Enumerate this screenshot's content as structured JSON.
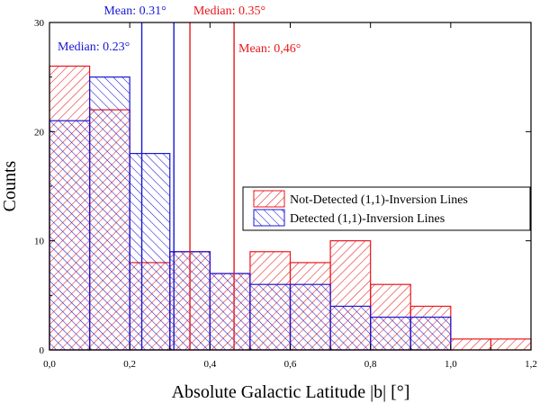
{
  "chart_data": {
    "type": "bar",
    "xlabel": "Absolute Galactic Latitude |b| [°]",
    "ylabel": "Counts",
    "xlim": [
      0.0,
      1.2
    ],
    "ylim": [
      0,
      30
    ],
    "bin_width": 0.1,
    "x_ticks": [
      "0,0",
      "0,2",
      "0,4",
      "0,6",
      "0,8",
      "1,0",
      "1,2"
    ],
    "x_tick_values": [
      0.0,
      0.2,
      0.4,
      0.6,
      0.8,
      1.0,
      1.2
    ],
    "y_ticks": [
      "0",
      "10",
      "20",
      "30"
    ],
    "y_tick_values": [
      0,
      10,
      20,
      30
    ],
    "bin_starts": [
      0.0,
      0.1,
      0.2,
      0.3,
      0.4,
      0.5,
      0.6,
      0.7,
      0.8,
      0.9,
      1.0,
      1.1
    ],
    "series": [
      {
        "name": "Not-Detected (1,1)-Inversion Lines",
        "color": "#e8171b",
        "hatch": "right",
        "values": [
          26,
          22,
          8,
          9,
          7,
          9,
          8,
          10,
          6,
          4,
          1,
          1
        ]
      },
      {
        "name": "Detected (1,1)-Inversion Lines",
        "color": "#1717d6",
        "hatch": "left",
        "values": [
          21,
          25,
          18,
          9,
          7,
          6,
          6,
          4,
          3,
          3,
          0,
          0
        ]
      }
    ],
    "annotations": [
      {
        "label": "Mean: 0.31°",
        "x": 0.31,
        "color": "#1717d6"
      },
      {
        "label": "Median: 0.23°",
        "x": 0.23,
        "color": "#1717d6"
      },
      {
        "label": "Median: 0.35°",
        "x": 0.35,
        "color": "#e8171b"
      },
      {
        "label": "Mean: 0,46°",
        "x": 0.46,
        "color": "#e8171b"
      }
    ],
    "legend_position": "right-middle"
  }
}
